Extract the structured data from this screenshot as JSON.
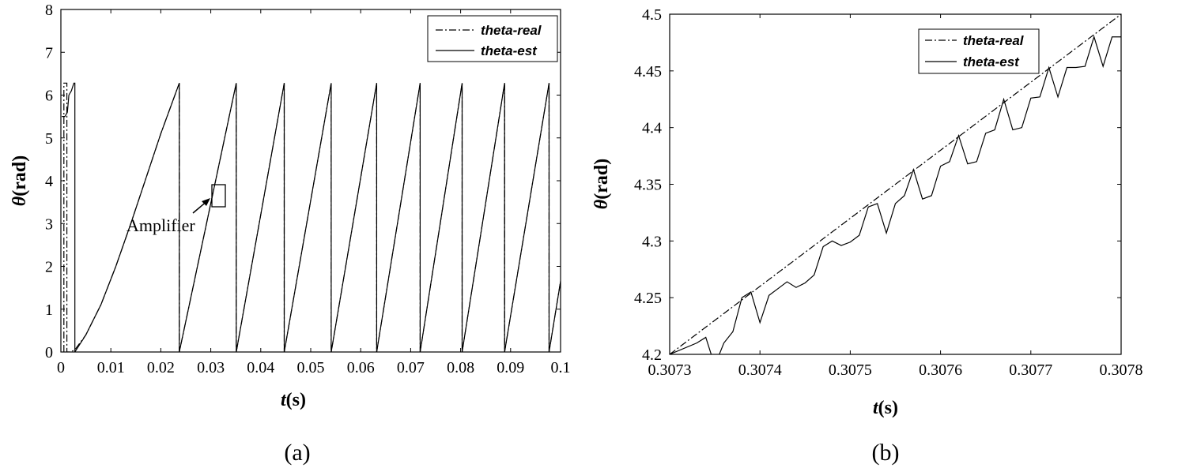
{
  "chart_data": [
    {
      "type": "line",
      "panel_label": "(a)",
      "xlabel_var": "t",
      "xlabel_unit": "(s)",
      "ylabel_var": "θ",
      "ylabel_unit": "(rad)",
      "xlim": [
        0,
        0.1
      ],
      "ylim": [
        0,
        8
      ],
      "xticks": [
        "0",
        "0.01",
        "0.02",
        "0.03",
        "0.04",
        "0.05",
        "0.06",
        "0.07",
        "0.08",
        "0.09",
        "0.1"
      ],
      "yticks": [
        "0",
        "1",
        "2",
        "3",
        "4",
        "5",
        "6",
        "7",
        "8"
      ],
      "grid": false,
      "legend": "top-right",
      "annotation": "Amplifier",
      "series": [
        {
          "name": "theta-real",
          "style": "dash-dot",
          "x": [
            0.0006,
            0.0006,
            0.0012,
            0.0012,
            0.0019,
            0.0019,
            0.0028,
            0.005,
            0.008,
            0.011,
            0.014,
            0.017,
            0.02,
            0.0237,
            0.0237,
            0.0351,
            0.0351,
            0.0447,
            0.0447,
            0.0541,
            0.0541,
            0.0632,
            0.0632,
            0.0719,
            0.0719,
            0.0803,
            0.0803,
            0.0888,
            0.0888,
            0.0977,
            0.0977,
            0.1
          ],
          "y": [
            0.0,
            6.28,
            6.28,
            0.0,
            0.0,
            0.0,
            0.05,
            0.4,
            1.1,
            2.0,
            3.0,
            4.05,
            5.1,
            6.28,
            0.0,
            6.28,
            0.0,
            6.28,
            0.0,
            6.28,
            0.0,
            6.28,
            0.0,
            6.28,
            0.0,
            6.28,
            0.0,
            6.28,
            0.0,
            6.28,
            0.0,
            1.65
          ]
        },
        {
          "name": "theta-est",
          "style": "solid",
          "x": [
            0.0002,
            0.0008,
            0.0013,
            0.0016,
            0.0021,
            0.0026,
            0.0028,
            0.0028,
            0.005,
            0.008,
            0.011,
            0.014,
            0.017,
            0.02,
            0.0237,
            0.0237,
            0.0351,
            0.0351,
            0.0447,
            0.0447,
            0.0541,
            0.0541,
            0.0632,
            0.0632,
            0.0719,
            0.0719,
            0.0803,
            0.0803,
            0.0888,
            0.0888,
            0.0977,
            0.0977,
            0.1
          ],
          "y": [
            5.5,
            5.5,
            5.6,
            6.0,
            6.1,
            6.28,
            6.28,
            0.0,
            0.4,
            1.1,
            2.0,
            3.0,
            4.05,
            5.1,
            6.28,
            0.0,
            6.28,
            0.0,
            6.28,
            0.0,
            6.28,
            0.0,
            6.28,
            0.0,
            6.28,
            0.0,
            6.28,
            0.0,
            6.28,
            0.0,
            6.28,
            0.0,
            1.65
          ]
        }
      ]
    },
    {
      "type": "line",
      "panel_label": "(b)",
      "xlabel_var": "t",
      "xlabel_unit": "(s)",
      "ylabel_var": "θ",
      "ylabel_unit": "(rad)",
      "xlim": [
        0.3073,
        0.3078
      ],
      "ylim": [
        4.2,
        4.5
      ],
      "xticks": [
        "0.3073",
        "0.3074",
        "0.3075",
        "0.3076",
        "0.3077",
        "0.3078"
      ],
      "yticks": [
        "4.2",
        "4.25",
        "4.3",
        "4.35",
        "4.4",
        "4.45",
        "4.5"
      ],
      "grid": false,
      "legend": "top-right",
      "series": [
        {
          "name": "theta-real",
          "style": "dash-dot",
          "x": [
            0.3073,
            0.3078
          ],
          "y": [
            4.2,
            4.5
          ]
        },
        {
          "name": "theta-est",
          "style": "solid",
          "x": [
            0.3073,
            0.30733,
            0.30734,
            0.30735,
            0.30736,
            0.30737,
            0.30738,
            0.30739,
            0.3074,
            0.30741,
            0.30742,
            0.30743,
            0.30744,
            0.30745,
            0.30746,
            0.30747,
            0.30748,
            0.30749,
            0.3075,
            0.30751,
            0.30752,
            0.30753,
            0.30754,
            0.30755,
            0.30756,
            0.30757,
            0.30758,
            0.30759,
            0.3076,
            0.30761,
            0.30762,
            0.30763,
            0.30764,
            0.30765,
            0.30766,
            0.30767,
            0.30768,
            0.30769,
            0.3077,
            0.30771,
            0.30772,
            0.30773,
            0.30774,
            0.30775,
            0.30776,
            0.30777,
            0.30778,
            0.30779,
            0.3078
          ],
          "y": [
            4.2,
            4.21,
            4.215,
            4.19,
            4.21,
            4.22,
            4.25,
            4.255,
            4.228,
            4.252,
            4.258,
            4.264,
            4.259,
            4.263,
            4.27,
            4.295,
            4.3,
            4.296,
            4.299,
            4.305,
            4.33,
            4.333,
            4.307,
            4.333,
            4.34,
            4.363,
            4.337,
            4.34,
            4.366,
            4.37,
            4.393,
            4.368,
            4.37,
            4.395,
            4.398,
            4.425,
            4.398,
            4.4,
            4.426,
            4.427,
            4.453,
            4.427,
            4.453,
            4.453,
            4.454,
            4.48,
            4.454,
            4.48,
            4.48
          ]
        }
      ]
    }
  ]
}
